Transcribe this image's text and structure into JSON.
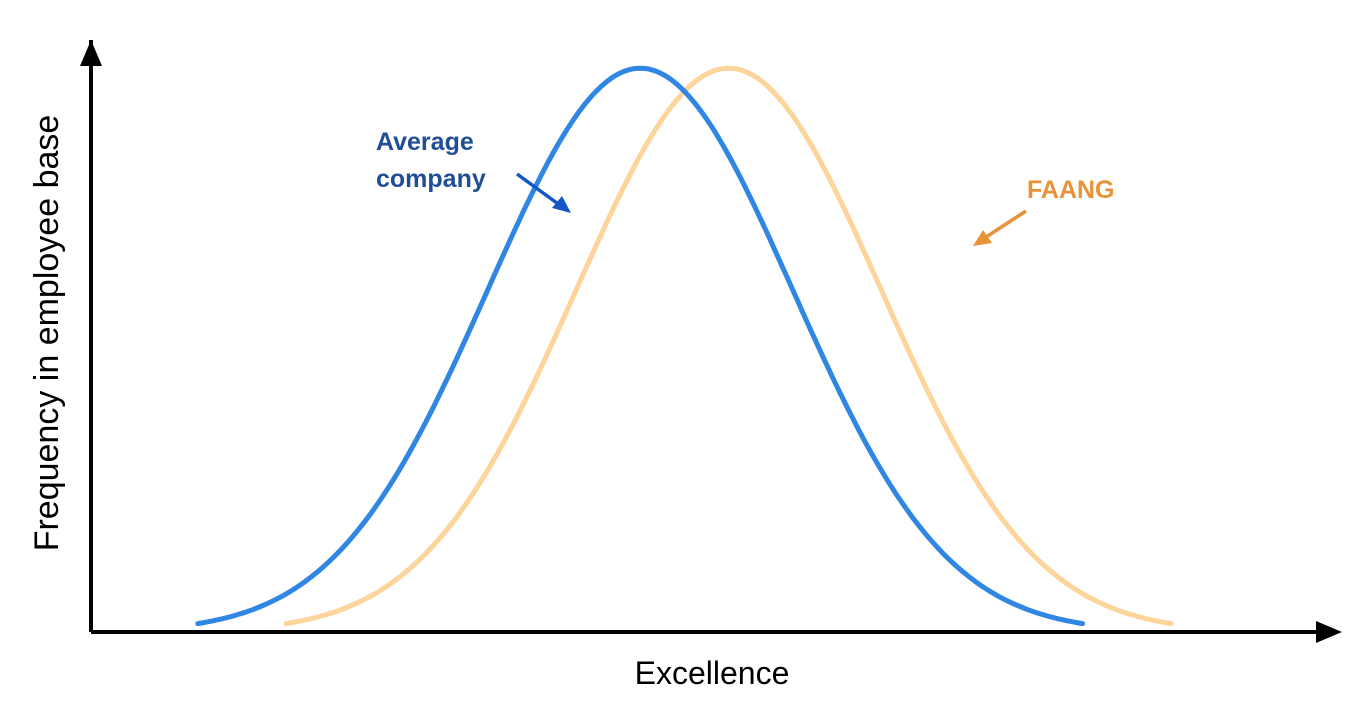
{
  "chart_data": {
    "type": "line",
    "title": "",
    "xlabel": "Excellence",
    "ylabel": "Frequency in employee base",
    "grid": false,
    "legend": "none",
    "xlim": [
      -3.6,
      4.6
    ],
    "ylim": [
      0,
      1.05
    ],
    "series": [
      {
        "name": "Average company",
        "color": "#2f86e3",
        "curve": "normal",
        "mean": 0,
        "sd": 1,
        "x_range": [
          -2.9,
          2.9
        ],
        "peak": 1.0
      },
      {
        "name": "FAANG",
        "color": "#fdd49a",
        "curve": "normal",
        "mean": 0.58,
        "sd": 1,
        "x_range": [
          -2.32,
          3.48
        ],
        "peak": 1.0
      }
    ],
    "annotations": [
      {
        "lines": [
          "Average",
          "company"
        ],
        "color": "#1f4e96",
        "arrow_color": "#1357c7",
        "points_to": "Average company"
      },
      {
        "lines": [
          "FAANG"
        ],
        "color": "#e8923a",
        "arrow_color": "#e8923a",
        "points_to": "FAANG"
      }
    ]
  }
}
